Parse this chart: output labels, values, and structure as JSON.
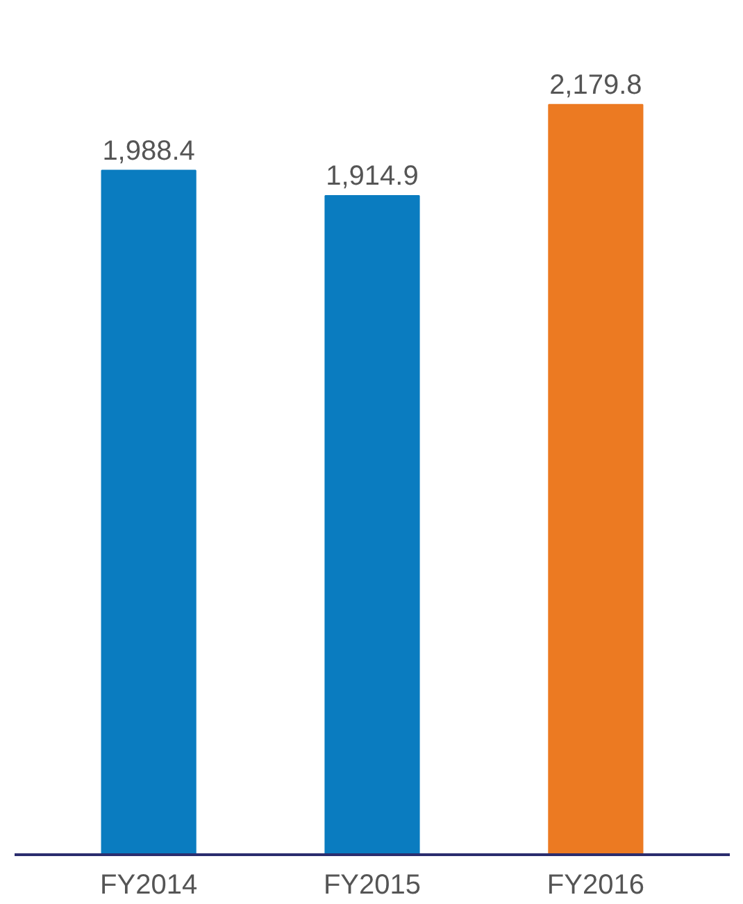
{
  "chart_data": {
    "type": "bar",
    "categories": [
      "FY2014",
      "FY2015",
      "FY2016"
    ],
    "values": [
      1988.4,
      1914.9,
      2179.8
    ],
    "colors": [
      "#0a7cc0",
      "#0a7cc0",
      "#ec7a22"
    ],
    "value_labels": [
      "1,988.4",
      "1,914.9",
      "2,179.8"
    ]
  }
}
